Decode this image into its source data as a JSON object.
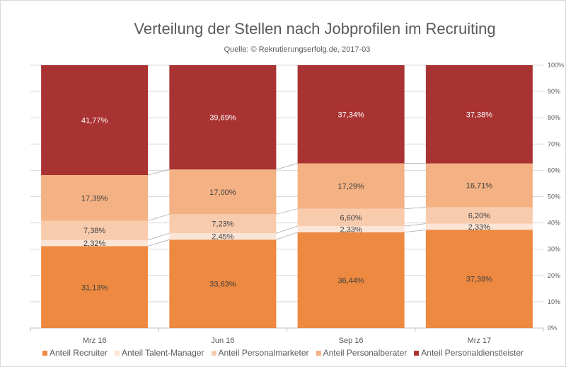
{
  "chart_data": {
    "type": "bar",
    "stacked": "percent",
    "title": "Verteilung der Stellen nach Jobprofilen im Recruiting",
    "subtitle": "Quelle: © Rekrutierungserfolg.de, 2017-03",
    "categories": [
      "Mrz 16",
      "Jun 16",
      "Sep 16",
      "Mrz 17"
    ],
    "series": [
      {
        "name": "Anteil Recruiter",
        "color": "#ED8940",
        "values": [
          31.13,
          33.63,
          36.44,
          37.38
        ],
        "labels": [
          "31,13%",
          "33,63%",
          "36,44%",
          "37,38%"
        ]
      },
      {
        "name": "Anteil Talent-Manager",
        "color": "#FBE5D6",
        "values": [
          2.32,
          2.45,
          2.33,
          2.33
        ],
        "labels": [
          "2,32%",
          "2,45%",
          "2,33%",
          "2,33%"
        ]
      },
      {
        "name": "Anteil Personalmarketer",
        "color": "#F8CBAD",
        "values": [
          7.38,
          7.23,
          6.6,
          6.2
        ],
        "labels": [
          "7,38%",
          "7,23%",
          "6,60%",
          "6,20%"
        ]
      },
      {
        "name": "Anteil Personalberater",
        "color": "#F4B183",
        "values": [
          17.39,
          17.0,
          17.29,
          16.71
        ],
        "labels": [
          "17,39%",
          "17,00%",
          "17,29%",
          "16,71%"
        ]
      },
      {
        "name": "Anteil Personaldienstleister",
        "color": "#A93232",
        "values": [
          41.77,
          39.69,
          37.34,
          37.38
        ],
        "labels": [
          "41,77%",
          "39,69%",
          "37,34%",
          "37,38%"
        ]
      }
    ],
    "yaxis": {
      "position": "right",
      "ylim": [
        0,
        100
      ],
      "ticks": [
        "0%",
        "10%",
        "20%",
        "30%",
        "40%",
        "50%",
        "60%",
        "70%",
        "80%",
        "90%",
        "100%"
      ]
    },
    "grid": true,
    "series_lines": true,
    "legend": "bottom"
  }
}
